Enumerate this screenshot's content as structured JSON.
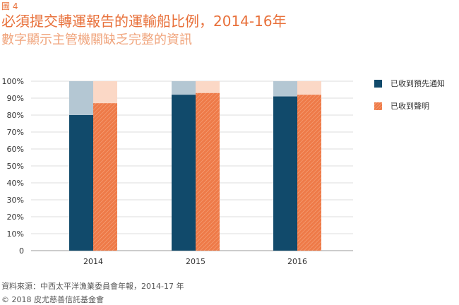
{
  "figure_label": "圖 4",
  "chart_data": {
    "type": "bar",
    "title": "必須提交轉運報告的運輸船比例，2014-16年",
    "subtitle": "數字顯示主管機關缺乏完整的資訊",
    "categories": [
      "2014",
      "2015",
      "2016"
    ],
    "series": [
      {
        "name": "已收到預先通知",
        "values": [
          80,
          92,
          91
        ],
        "color": "#114a6b",
        "background_color": "#b4c7d3"
      },
      {
        "name": "已收到聲明",
        "values": [
          87,
          93,
          92
        ],
        "color": "#ee7a48",
        "background_color": "#fbd8c6"
      }
    ],
    "ylim": [
      0,
      100
    ],
    "yticks": [
      "0",
      "10%",
      "20%",
      "30%",
      "40%",
      "50%",
      "60%",
      "70%",
      "80%",
      "90%",
      "100%"
    ],
    "xlabel": "",
    "ylabel": "",
    "grid": true,
    "legend_position": "right"
  },
  "source": "資料來源：中西太平洋漁業委員會年報，2014-17 年",
  "copyright": "© 2018 皮尤慈善信託基金會"
}
